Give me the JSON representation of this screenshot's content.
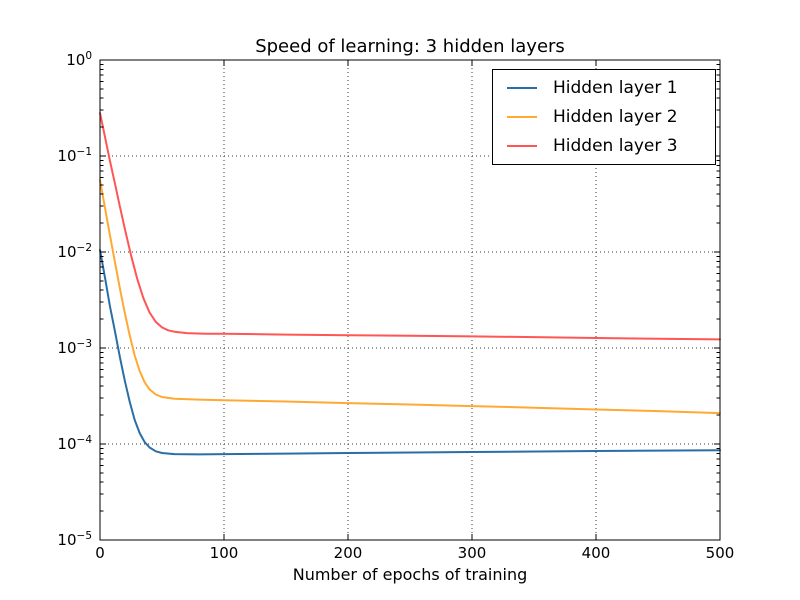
{
  "figure": {
    "background": "#ffffff",
    "axis_color": "#000000"
  },
  "chart_data": {
    "type": "line",
    "title": "Speed of learning: 3 hidden layers",
    "xlabel": "Number of epochs of training",
    "ylabel": "",
    "x_range": [
      0,
      500
    ],
    "x_ticks": [
      0,
      100,
      200,
      300,
      400,
      500
    ],
    "y_scale": "log",
    "ylim": [
      1e-05,
      1
    ],
    "y_tick_exponents": [
      0,
      -1,
      -2,
      -3,
      -4,
      -5
    ],
    "grid": {
      "style": "dotted",
      "color": "#3a3a3a",
      "major_x": true,
      "major_y": true
    },
    "legend": {
      "position": "upper right",
      "border_color": "#000000",
      "background": "#ffffff"
    },
    "series": [
      {
        "label": "Hidden layer 1",
        "color": "#2A6EA6",
        "points": [
          [
            0,
            0.0105
          ],
          [
            4,
            0.0054
          ],
          [
            8,
            0.00273
          ],
          [
            12,
            0.0015
          ],
          [
            16,
            0.000811
          ],
          [
            20,
            0.000456
          ],
          [
            24,
            0.000273
          ],
          [
            28,
            0.000178
          ],
          [
            32,
            0.00013
          ],
          [
            36,
            0.000105
          ],
          [
            40,
            9.2e-05
          ],
          [
            45,
            8.4e-05
          ],
          [
            50,
            8.06e-05
          ],
          [
            60,
            7.85e-05
          ],
          [
            80,
            7.8e-05
          ],
          [
            100,
            7.85e-05
          ],
          [
            150,
            7.95e-05
          ],
          [
            200,
            8.05e-05
          ],
          [
            300,
            8.25e-05
          ],
          [
            400,
            8.45e-05
          ],
          [
            500,
            8.6e-05
          ]
        ]
      },
      {
        "label": "Hidden layer 2",
        "color": "#FFA933",
        "points": [
          [
            0,
            0.0559
          ],
          [
            4,
            0.0289
          ],
          [
            8,
            0.015
          ],
          [
            12,
            0.00791
          ],
          [
            16,
            0.00422
          ],
          [
            20,
            0.00232
          ],
          [
            24,
            0.00134
          ],
          [
            28,
            0.000835
          ],
          [
            32,
            0.000575
          ],
          [
            36,
            0.00044
          ],
          [
            40,
            0.00037
          ],
          [
            45,
            0.000328
          ],
          [
            50,
            0.000309
          ],
          [
            60,
            0.000296
          ],
          [
            80,
            0.00029
          ],
          [
            100,
            0.000286
          ],
          [
            150,
            0.000277
          ],
          [
            200,
            0.000267
          ],
          [
            250,
            0.000258
          ],
          [
            300,
            0.000248
          ],
          [
            350,
            0.000239
          ],
          [
            400,
            0.000229
          ],
          [
            450,
            0.00022
          ],
          [
            500,
            0.00021
          ]
        ]
      },
      {
        "label": "Hidden layer 3",
        "color": "#FF5555",
        "points": [
          [
            0,
            0.28
          ],
          [
            4,
            0.158
          ],
          [
            8,
            0.0894
          ],
          [
            12,
            0.0519
          ],
          [
            16,
            0.03
          ],
          [
            20,
            0.0175
          ],
          [
            25,
            0.00928
          ],
          [
            30,
            0.00526
          ],
          [
            35,
            0.0033
          ],
          [
            40,
            0.00234
          ],
          [
            45,
            0.00187
          ],
          [
            50,
            0.00164
          ],
          [
            55,
            0.00153
          ],
          [
            60,
            0.00148
          ],
          [
            70,
            0.00143
          ],
          [
            85,
            0.00141
          ],
          [
            100,
            0.00141
          ],
          [
            150,
            0.00138
          ],
          [
            200,
            0.00136
          ],
          [
            250,
            0.00134
          ],
          [
            300,
            0.00132
          ],
          [
            350,
            0.0013
          ],
          [
            400,
            0.00127
          ],
          [
            450,
            0.00125
          ],
          [
            500,
            0.00123
          ]
        ]
      }
    ]
  }
}
